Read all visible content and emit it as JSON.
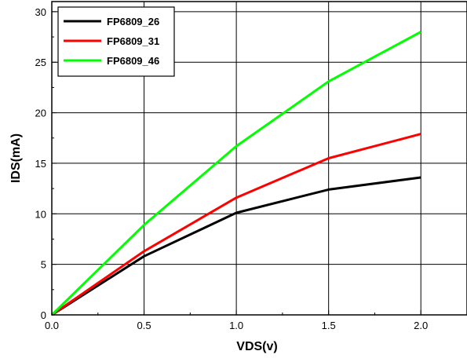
{
  "chart_data": {
    "type": "line",
    "title": "",
    "xlabel": "VDS(v)",
    "ylabel": "IDS(mA)",
    "xlim": [
      0.0,
      2.25
    ],
    "ylim": [
      0,
      31
    ],
    "x_ticks": [
      "0.0",
      "0.5",
      "1.0",
      "1.5",
      "2.0"
    ],
    "y_ticks": [
      "0",
      "5",
      "10",
      "15",
      "20",
      "25",
      "30"
    ],
    "grid": true,
    "legend_position": "top-left",
    "x": [
      0.0,
      0.5,
      1.0,
      1.5,
      2.0
    ],
    "series": [
      {
        "name": "FP6809_26",
        "color": "#000000",
        "values": [
          0.0,
          5.8,
          10.1,
          12.4,
          13.6
        ]
      },
      {
        "name": "FP6809_31",
        "color": "#ff0000",
        "values": [
          0.0,
          6.3,
          11.6,
          15.5,
          17.9
        ]
      },
      {
        "name": "FP6809_46",
        "color": "#00ff00",
        "values": [
          0.0,
          8.9,
          16.7,
          23.1,
          28.0
        ]
      }
    ]
  }
}
